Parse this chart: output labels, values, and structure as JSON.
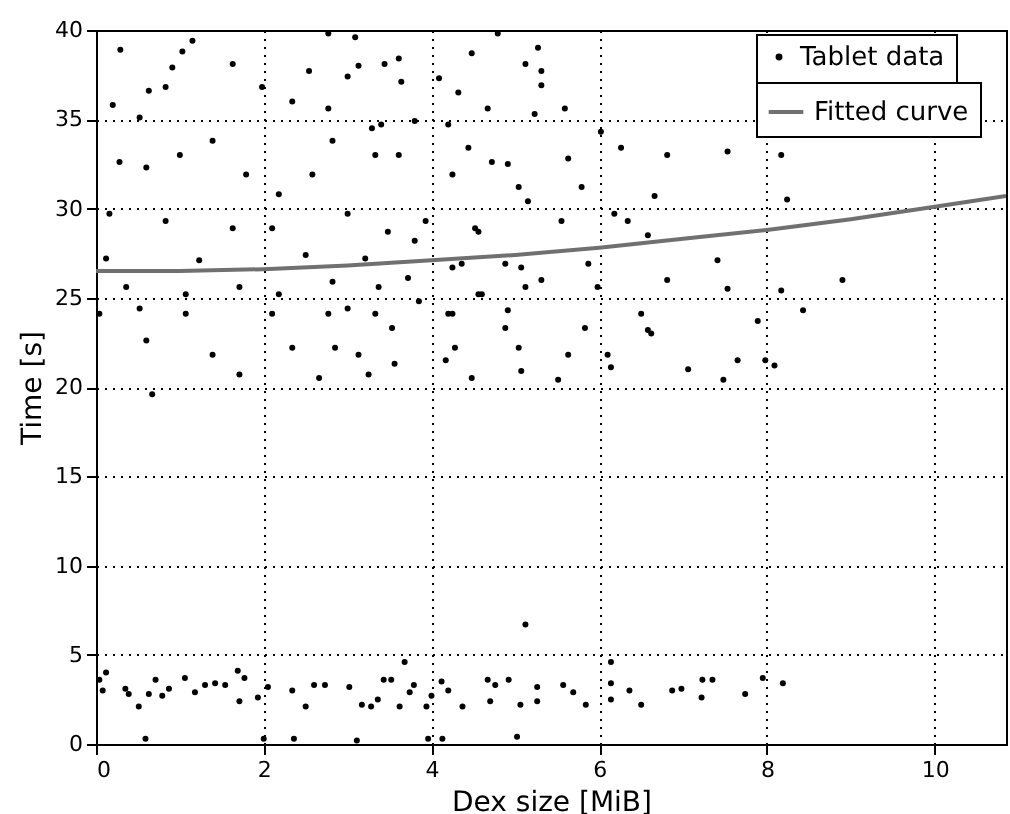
{
  "chart_data": {
    "type": "scatter",
    "xlabel": "Dex size [MiB]",
    "ylabel": "Time [s]",
    "xlim": [
      0,
      10.85
    ],
    "ylim": [
      0,
      40
    ],
    "xticks": [
      0,
      2,
      4,
      6,
      8,
      10
    ],
    "yticks": [
      0,
      5,
      10,
      15,
      20,
      25,
      30,
      35,
      40
    ],
    "grid": true,
    "legend": "top right",
    "series": [
      {
        "name": "Tablet data",
        "color": "#000000",
        "marker": "circle",
        "x": [
          0.04,
          0.12,
          0.08,
          0.35,
          0.39,
          0.51,
          0.59,
          0.63,
          0.71,
          0.79,
          0.87,
          1.06,
          1.18,
          1.3,
          1.42,
          1.54,
          1.69,
          1.71,
          1.77,
          1.93,
          2.05,
          2.0,
          2.34,
          2.36,
          2.5,
          2.6,
          2.73,
          3.02,
          3.11,
          3.17,
          3.28,
          3.36,
          3.43,
          3.52,
          3.62,
          3.68,
          3.74,
          3.79,
          3.94,
          4.0,
          3.96,
          4.12,
          4.13,
          4.2,
          4.37,
          4.67,
          4.7,
          4.76,
          4.92,
          5.02,
          5.06,
          5.12,
          5.26,
          5.26,
          5.57,
          5.69,
          5.84,
          6.14,
          6.14,
          6.14,
          6.36,
          6.5,
          6.87,
          6.98,
          7.22,
          7.23,
          7.35,
          7.74,
          7.95,
          8.19,
          0.29,
          1.03,
          1.15,
          0.91,
          0.63,
          0.83,
          0.2,
          0.52,
          1.63,
          1.98,
          2.54,
          3.0,
          3.61,
          4.09,
          4.79,
          5.12,
          4.48,
          2.34,
          2.82,
          3.29,
          1.39,
          1.0,
          0.28,
          0.6,
          1.79,
          2.18,
          2.58,
          3.61,
          4.25,
          4.72,
          5.04,
          0.16,
          0.83,
          1.63,
          2.1,
          3.0,
          3.48,
          3.93,
          4.56,
          0.12,
          1.23,
          2.5,
          3.21,
          4.25,
          4.88,
          0.36,
          1.07,
          1.71,
          2.18,
          2.82,
          3.37,
          3.85,
          4.56,
          5.12,
          0.04,
          0.52,
          1.07,
          2.1,
          3.0,
          3.53,
          4.25,
          4.88,
          0.6,
          1.39,
          2.34,
          3.13,
          4.17,
          5.04,
          1.71,
          2.66,
          4.48,
          0.67,
          2.77,
          3.09,
          3.13,
          3.44,
          3.64,
          5.27,
          5.31,
          5.31,
          4.32,
          2.77,
          3.4,
          3.8,
          4.2,
          4.67,
          5.23,
          5.59,
          6.02,
          6.26,
          6.81,
          3.33,
          4.44,
          4.91,
          5.63,
          6.66,
          5.79,
          5.15,
          6.18,
          6.34,
          6.58,
          5.55,
          4.52,
          3.8,
          4.36,
          5.07,
          5.87,
          6.81,
          7.53,
          5.98,
          5.31,
          4.6,
          3.72,
          2.77,
          3.33,
          4.2,
          4.91,
          5.83,
          6.5,
          6.58,
          6.62,
          2.85,
          3.56,
          4.28,
          5.63,
          6.1,
          6.14,
          5.51,
          5.07,
          3.25,
          8.09,
          7.06,
          7.48,
          8.24,
          8.17,
          7.41,
          8.43,
          7.89,
          7.65,
          7.98,
          7.53,
          8.17,
          8.9
        ],
        "values": [
          3.6,
          4.0,
          3.0,
          3.1,
          2.8,
          2.1,
          0.3,
          2.8,
          3.6,
          2.7,
          3.1,
          3.7,
          2.9,
          3.3,
          3.4,
          3.3,
          4.1,
          2.4,
          3.7,
          2.6,
          3.2,
          0.3,
          3.0,
          0.3,
          2.1,
          3.3,
          3.3,
          3.2,
          0.2,
          2.2,
          2.1,
          2.5,
          3.6,
          3.6,
          2.1,
          4.6,
          2.9,
          3.3,
          2.1,
          2.7,
          0.3,
          3.5,
          0.3,
          3.0,
          2.1,
          3.6,
          2.4,
          3.3,
          3.6,
          0.4,
          2.2,
          6.7,
          3.2,
          2.4,
          3.3,
          2.9,
          2.2,
          4.6,
          3.4,
          2.5,
          3.0,
          2.2,
          3.0,
          3.1,
          2.6,
          3.6,
          3.6,
          2.8,
          3.7,
          3.4,
          38.9,
          38.8,
          39.4,
          37.9,
          36.6,
          36.8,
          35.8,
          35.1,
          38.1,
          36.8,
          37.7,
          37.4,
          38.4,
          37.3,
          39.8,
          38.1,
          38.7,
          36.0,
          33.8,
          34.5,
          33.8,
          33.0,
          32.6,
          32.3,
          31.9,
          30.8,
          31.9,
          33.0,
          31.9,
          32.6,
          31.2,
          29.7,
          29.3,
          28.9,
          28.9,
          29.7,
          28.7,
          29.3,
          28.7,
          27.2,
          27.1,
          27.4,
          27.2,
          26.7,
          26.9,
          25.6,
          25.2,
          25.6,
          25.2,
          25.9,
          25.6,
          24.8,
          25.2,
          25.6,
          24.1,
          24.4,
          24.1,
          24.1,
          24.4,
          23.3,
          24.1,
          23.3,
          22.6,
          21.8,
          22.2,
          21.8,
          21.5,
          22.2,
          20.7,
          20.5,
          20.5,
          19.6,
          39.8,
          39.6,
          38.0,
          38.1,
          37.1,
          39.0,
          36.9,
          37.7,
          36.5,
          35.6,
          34.7,
          34.9,
          34.7,
          35.6,
          35.3,
          35.6,
          34.3,
          33.4,
          33.0,
          33.0,
          33.4,
          32.5,
          32.8,
          30.7,
          31.2,
          30.4,
          29.7,
          29.3,
          28.5,
          29.3,
          28.9,
          28.2,
          26.9,
          26.7,
          26.9,
          26.0,
          25.5,
          25.6,
          26.0,
          25.2,
          26.1,
          24.1,
          24.1,
          24.1,
          24.3,
          23.3,
          24.1,
          23.2,
          23.0,
          22.2,
          21.3,
          22.2,
          21.8,
          21.8,
          21.1,
          20.4,
          20.9,
          20.7,
          21.2,
          21.0,
          20.4,
          30.5,
          25.4,
          27.1,
          24.3,
          23.7,
          21.5,
          21.5,
          33.2,
          33.0,
          26.0
        ]
      },
      {
        "type": "line",
        "name": "Fitted curve",
        "color": "#707070",
        "marker": "none",
        "x": [
          0,
          1,
          2,
          3,
          4,
          5,
          6,
          7,
          8,
          9,
          10,
          10.85
        ],
        "values": [
          26.5,
          26.5,
          26.6,
          26.8,
          27.1,
          27.4,
          27.8,
          28.3,
          28.8,
          29.4,
          30.1,
          30.7
        ]
      }
    ]
  }
}
